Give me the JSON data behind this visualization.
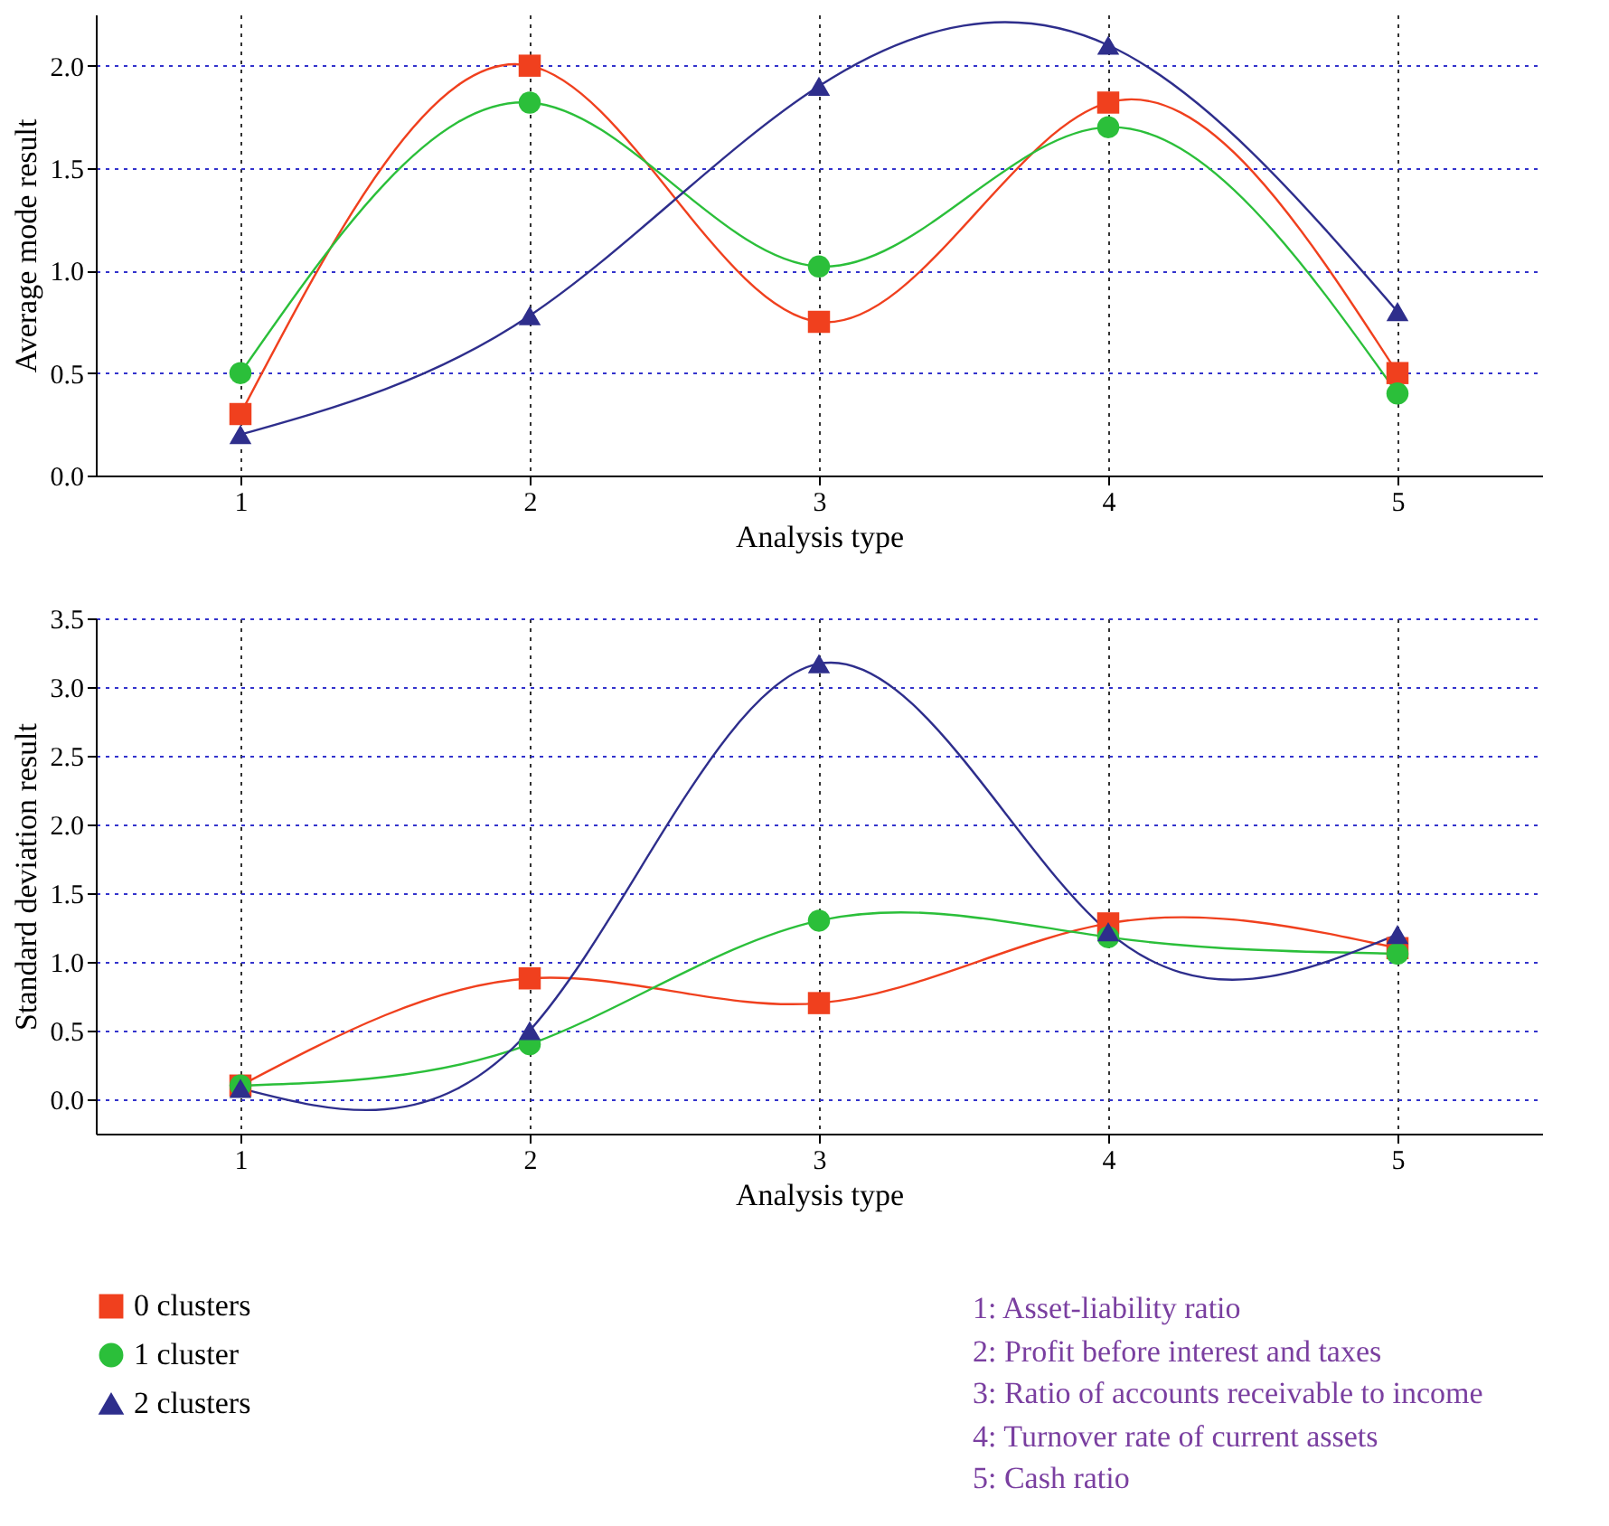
{
  "chart_data": [
    {
      "type": "line",
      "xlabel": "Analysis type",
      "ylabel": "Average mode result",
      "x": [
        1,
        2,
        3,
        4,
        5
      ],
      "xlim": [
        0.5,
        5.5
      ],
      "xticks": [
        1,
        2,
        3,
        4,
        5
      ],
      "ylim": [
        0,
        2.25
      ],
      "yticks": [
        {
          "value": 0,
          "label": "0.0"
        },
        {
          "value": 0.5,
          "label": "0.5"
        },
        {
          "value": 1,
          "label": "1.0"
        },
        {
          "value": 1.5,
          "label": "1.5"
        },
        {
          "value": 2,
          "label": "2.0"
        }
      ],
      "grid": true,
      "legend": false,
      "series": [
        {
          "color": "#f0401e",
          "marker": "square",
          "values": [
            0.3,
            2.0,
            0.75,
            1.82,
            0.5
          ]
        },
        {
          "color": "#2bbf3a",
          "marker": "circle",
          "values": [
            0.5,
            1.82,
            1.02,
            1.7,
            0.4
          ]
        },
        {
          "color": "#2e2e8c",
          "marker": "triangle",
          "values": [
            0.2,
            0.78,
            1.9,
            2.1,
            0.8
          ]
        }
      ]
    },
    {
      "type": "line",
      "xlabel": "Analysis type",
      "ylabel": "Standard deviation result",
      "x": [
        1,
        2,
        3,
        4,
        5
      ],
      "xlim": [
        0.5,
        5.5
      ],
      "xticks": [
        1,
        2,
        3,
        4,
        5
      ],
      "ylim": [
        -0.25,
        3.5
      ],
      "yticks": [
        {
          "value": 0,
          "label": "0.0"
        },
        {
          "value": 0.5,
          "label": "0.5"
        },
        {
          "value": 1,
          "label": "1.0"
        },
        {
          "value": 1.5,
          "label": "1.5"
        },
        {
          "value": 2,
          "label": "2.0"
        },
        {
          "value": 2.5,
          "label": "2.5"
        },
        {
          "value": 3,
          "label": "3.0"
        },
        {
          "value": 3.5,
          "label": "3.5"
        }
      ],
      "grid": true,
      "legend": "bottom left",
      "series": [
        {
          "name": "0 clusters",
          "color": "#f0401e",
          "marker": "square",
          "values": [
            0.1,
            0.88,
            0.7,
            1.28,
            1.1
          ]
        },
        {
          "name": "1 cluster",
          "color": "#2bbf3a",
          "marker": "circle",
          "values": [
            0.1,
            0.4,
            1.3,
            1.18,
            1.06
          ]
        },
        {
          "name": "2 clusters",
          "color": "#2e2e8c",
          "marker": "triangle",
          "values": [
            0.08,
            0.5,
            3.17,
            1.22,
            1.2
          ]
        }
      ],
      "annotations": [
        "1: Asset-liability ratio",
        "2: Profit before interest and taxes",
        "3: Ratio of accounts receivable to income",
        "4: Turnover rate of current assets",
        "5: Cash ratio"
      ]
    }
  ]
}
